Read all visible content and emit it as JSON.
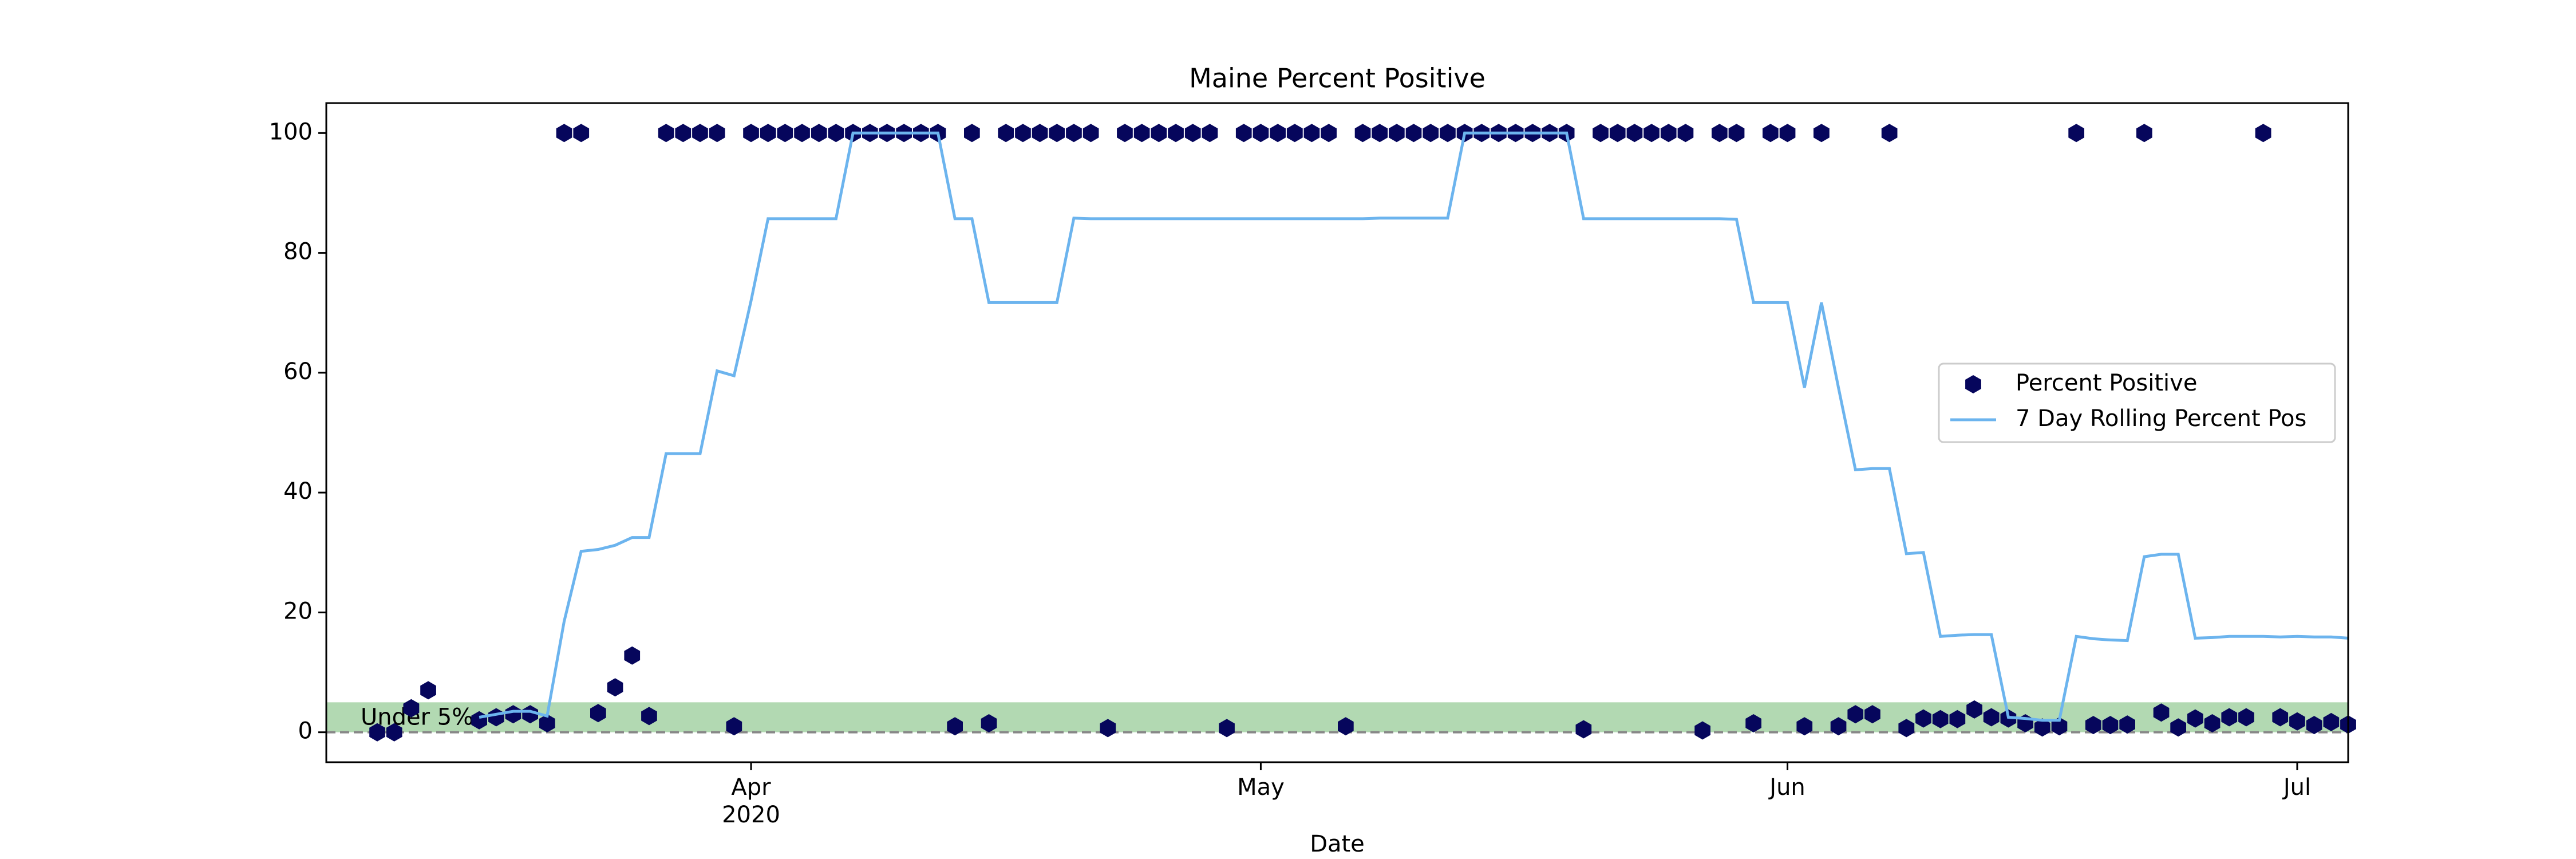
{
  "chart_data": {
    "type": "scatter",
    "title": "Maine Percent Positive",
    "xlabel": "Date",
    "x": [
      "2020-03-10",
      "2020-03-11",
      "2020-03-12",
      "2020-03-13",
      "2020-03-16",
      "2020-03-17",
      "2020-03-18",
      "2020-03-19",
      "2020-03-20",
      "2020-03-21",
      "2020-03-22",
      "2020-03-23",
      "2020-03-24",
      "2020-03-25",
      "2020-03-26",
      "2020-03-27",
      "2020-03-28",
      "2020-03-29",
      "2020-03-30",
      "2020-03-31",
      "2020-04-01",
      "2020-04-02",
      "2020-04-03",
      "2020-04-04",
      "2020-04-05",
      "2020-04-06",
      "2020-04-07",
      "2020-04-08",
      "2020-04-09",
      "2020-04-10",
      "2020-04-11",
      "2020-04-12",
      "2020-04-13",
      "2020-04-14",
      "2020-04-15",
      "2020-04-16",
      "2020-04-17",
      "2020-04-18",
      "2020-04-19",
      "2020-04-20",
      "2020-04-21",
      "2020-04-22",
      "2020-04-23",
      "2020-04-24",
      "2020-04-25",
      "2020-04-26",
      "2020-04-27",
      "2020-04-28",
      "2020-04-29",
      "2020-04-30",
      "2020-05-01",
      "2020-05-02",
      "2020-05-03",
      "2020-05-04",
      "2020-05-05",
      "2020-05-06",
      "2020-05-07",
      "2020-05-08",
      "2020-05-09",
      "2020-05-10",
      "2020-05-11",
      "2020-05-12",
      "2020-05-13",
      "2020-05-14",
      "2020-05-15",
      "2020-05-16",
      "2020-05-17",
      "2020-05-18",
      "2020-05-19",
      "2020-05-20",
      "2020-05-21",
      "2020-05-22",
      "2020-05-23",
      "2020-05-24",
      "2020-05-25",
      "2020-05-26",
      "2020-05-27",
      "2020-05-28",
      "2020-05-29",
      "2020-05-30",
      "2020-05-31",
      "2020-06-01",
      "2020-06-02",
      "2020-06-03",
      "2020-06-04",
      "2020-06-05",
      "2020-06-06",
      "2020-06-07",
      "2020-06-08",
      "2020-06-09",
      "2020-06-10",
      "2020-06-11",
      "2020-06-12",
      "2020-06-13",
      "2020-06-14",
      "2020-06-15",
      "2020-06-16",
      "2020-06-17",
      "2020-06-18",
      "2020-06-19",
      "2020-06-20",
      "2020-06-21",
      "2020-06-22",
      "2020-06-23",
      "2020-06-24",
      "2020-06-25",
      "2020-06-26",
      "2020-06-27",
      "2020-06-28",
      "2020-06-29",
      "2020-06-30",
      "2020-07-01",
      "2020-07-02",
      "2020-07-03",
      "2020-07-04"
    ],
    "series": [
      {
        "name": "Percent Positive",
        "type": "scatter",
        "color": "#06065c",
        "values": [
          0,
          0,
          4,
          7,
          2,
          2.5,
          3,
          3,
          1.5,
          100,
          100,
          3.2,
          7.5,
          12.8,
          2.7,
          100,
          100,
          100,
          100,
          1,
          100,
          100,
          100,
          100,
          100,
          100,
          100,
          100,
          100,
          100,
          100,
          100,
          1,
          100,
          1.5,
          100,
          100,
          100,
          100,
          100,
          100,
          0.7,
          100,
          100,
          100,
          100,
          100,
          100,
          0.7,
          100,
          100,
          100,
          100,
          100,
          100,
          1,
          100,
          100,
          100,
          100,
          100,
          100,
          100,
          100,
          100,
          100,
          100,
          100,
          100,
          0.5,
          100,
          100,
          100,
          100,
          100,
          100,
          0.3,
          100,
          100,
          1.5,
          100,
          100,
          1,
          100,
          1,
          3,
          3,
          100,
          0.7,
          2.3,
          2.2,
          2.2,
          3.8,
          2.5,
          2.3,
          1.5,
          0.8,
          1,
          100,
          1.2,
          1.2,
          1.3,
          100,
          3.3,
          0.8,
          2.3,
          1.5,
          2.5,
          2.5,
          100,
          2.5,
          1.8,
          1.2,
          1.7,
          1.3
        ]
      },
      {
        "name": "7 Day Rolling Percent Pos",
        "type": "line",
        "color": "#6cb4ee",
        "values": [
          null,
          null,
          null,
          null,
          2.5,
          3,
          3.5,
          3.5,
          2.7,
          18.5,
          30.2,
          30.5,
          31.2,
          32.5,
          32.5,
          46.5,
          46.5,
          46.5,
          60.3,
          59.5,
          72,
          85.7,
          85.7,
          85.7,
          85.7,
          85.7,
          100,
          100,
          100,
          100,
          100,
          100,
          85.7,
          85.7,
          71.7,
          71.7,
          71.7,
          71.7,
          71.7,
          85.8,
          85.7,
          85.7,
          85.7,
          85.7,
          85.7,
          85.7,
          85.7,
          85.7,
          85.7,
          85.7,
          85.7,
          85.7,
          85.7,
          85.7,
          85.7,
          85.7,
          85.7,
          85.8,
          85.8,
          85.8,
          85.8,
          85.8,
          100,
          100,
          100,
          100,
          100,
          100,
          100,
          85.7,
          85.7,
          85.7,
          85.7,
          85.7,
          85.7,
          85.7,
          85.7,
          85.7,
          85.6,
          71.7,
          71.7,
          71.7,
          57.5,
          71.7,
          57.5,
          43.8,
          44,
          44,
          29.8,
          30,
          16,
          16.2,
          16.3,
          16.3,
          2.5,
          2.3,
          2,
          2,
          16,
          15.6,
          15.4,
          15.3,
          29.3,
          29.7,
          29.7,
          15.7,
          15.8,
          16,
          16,
          16,
          15.9,
          16,
          15.9,
          15.9,
          15.7
        ]
      }
    ],
    "xlim": [
      "2020-03-07",
      "2020-07-04"
    ],
    "xticks": [
      {
        "value": "2020-04-01",
        "label": [
          "Apr",
          "2020"
        ]
      },
      {
        "value": "2020-05-01",
        "label": [
          "May"
        ]
      },
      {
        "value": "2020-06-01",
        "label": [
          "Jun"
        ]
      },
      {
        "value": "2020-07-01",
        "label": [
          "Jul"
        ]
      }
    ],
    "ylim": [
      -5,
      105
    ],
    "yticks": [
      0,
      20,
      40,
      60,
      80,
      100
    ],
    "band": {
      "from": 0,
      "to": 5,
      "label": "Under 5%",
      "color": "#b2d9b2"
    },
    "reference_line": {
      "value": 0,
      "color": "#888888"
    },
    "legend": "center right",
    "grid": false
  }
}
